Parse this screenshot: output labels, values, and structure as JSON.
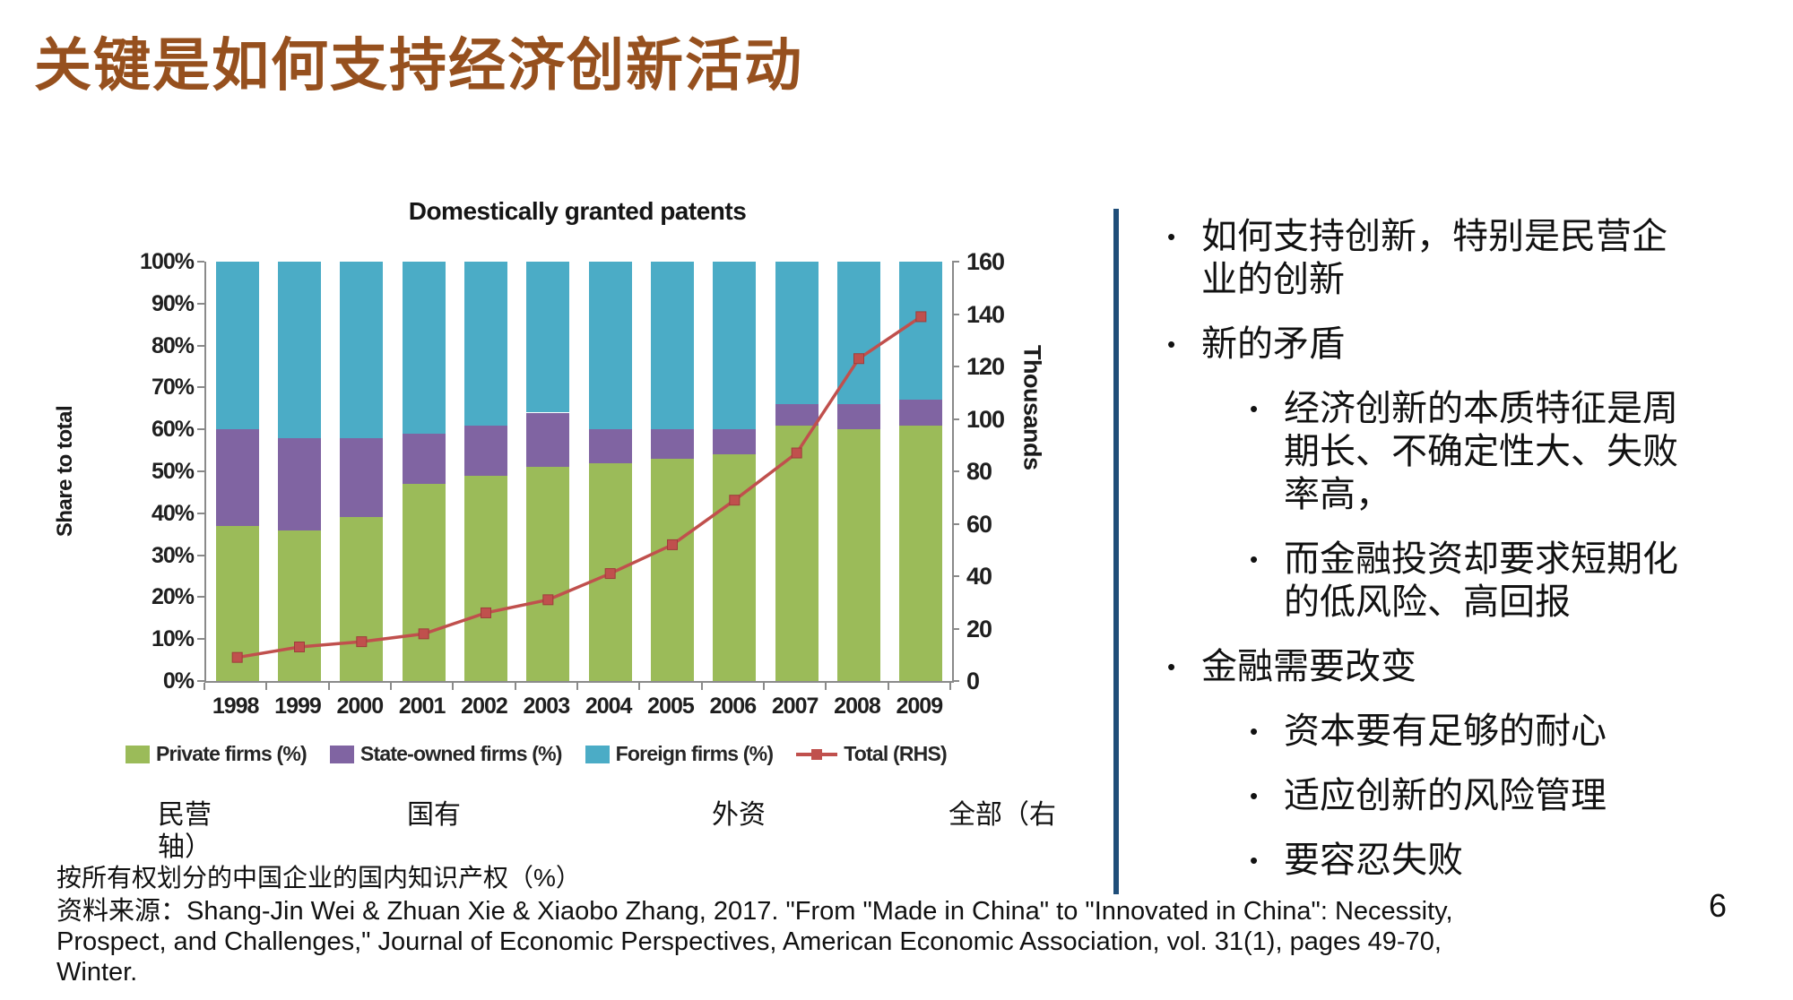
{
  "slide": {
    "title": "关键是如何支持经济创新活动",
    "page_number": "6",
    "caption_cn": "按所有权划分的中国企业的国内知识产权（%）",
    "source_text": "资料来源：Shang-Jin Wei & Zhuan Xie & Xiaobo Zhang, 2017. \"From \"Made in China\" to \"Innovated in China\": Necessity,\nProspect, and Challenges,\" Journal of Economic Perspectives, American Economic Association, vol. 31(1), pages 49-70,\nWinter.",
    "cn_axis_labels": [
      "民营",
      "国有",
      "外资",
      "全部（右",
      "轴）"
    ],
    "accent_colors": {
      "title_brown": "#96501E",
      "divider_blue": "#1F4E79"
    }
  },
  "bullets": [
    {
      "level": 1,
      "text": "如何支持创新，特别是民营企\n业的创新"
    },
    {
      "level": 1,
      "text": "新的矛盾"
    },
    {
      "level": 2,
      "text": "经济创新的本质特征是周\n期长、不确定性大、失败\n率高，"
    },
    {
      "level": 2,
      "text": "而金融投资却要求短期化\n的低风险、高回报"
    },
    {
      "level": 1,
      "text": "金融需要改变"
    },
    {
      "level": 2,
      "text": "资本要有足够的耐心"
    },
    {
      "level": 2,
      "text": "适应创新的风险管理"
    },
    {
      "level": 2,
      "text": "要容忍失败"
    }
  ],
  "chart_data": {
    "type": "bar",
    "subtype": "stacked-bar-with-line",
    "title": "Domestically granted patents",
    "xlabel": "",
    "ylabel_left": "Share to total",
    "ylabel_right": "Thousands",
    "categories": [
      "1998",
      "1999",
      "2000",
      "2001",
      "2002",
      "2003",
      "2004",
      "2005",
      "2006",
      "2007",
      "2008",
      "2009"
    ],
    "series": [
      {
        "name": "Private firms (%)",
        "type": "stacked-bar",
        "axis": "left",
        "color": "#9BBB59",
        "values": [
          37,
          36,
          39,
          47,
          49,
          51,
          52,
          53,
          54,
          61,
          60,
          61
        ]
      },
      {
        "name": "State-owned firms (%)",
        "type": "stacked-bar",
        "axis": "left",
        "color": "#8064A2",
        "values": [
          23,
          22,
          19,
          12,
          12,
          13,
          8,
          7,
          6,
          5,
          6,
          6
        ]
      },
      {
        "name": "Foreign firms (%)",
        "type": "stacked-bar",
        "axis": "left",
        "color": "#4BACC6",
        "values": [
          40,
          42,
          42,
          41,
          39,
          36,
          40,
          40,
          40,
          34,
          34,
          33
        ]
      },
      {
        "name": "Total (RHS)",
        "type": "line",
        "axis": "right",
        "color": "#C0504D",
        "marker": "square",
        "values": [
          9,
          13,
          15,
          18,
          26,
          31,
          41,
          52,
          69,
          87,
          123,
          139
        ]
      }
    ],
    "left_axis": {
      "min": 0,
      "max": 100,
      "tick_labels": [
        "100%",
        "90%",
        "80%",
        "70%",
        "60%",
        "50%",
        "40%",
        "30%",
        "20%",
        "10%",
        "0%"
      ]
    },
    "right_axis": {
      "min": 0,
      "max": 160,
      "tick_labels": [
        "160",
        "140",
        "120",
        "100",
        "80",
        "60",
        "40",
        "20",
        "0"
      ]
    },
    "legend_position": "bottom",
    "grid": false
  }
}
